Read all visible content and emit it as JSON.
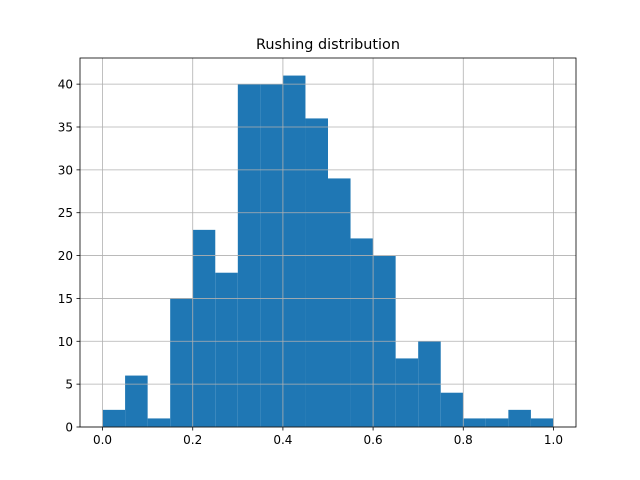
{
  "chart_data": {
    "type": "histogram",
    "title": "Rushing distribution",
    "bins": [
      0,
      0.05,
      0.1,
      0.15,
      0.2,
      0.25,
      0.3,
      0.35,
      0.4,
      0.45,
      0.5,
      0.55,
      0.6,
      0.65,
      0.7,
      0.75,
      0.8,
      0.85,
      0.9,
      0.95,
      1
    ],
    "counts": [
      2,
      6,
      1,
      15,
      23,
      18,
      40,
      40,
      41,
      36,
      29,
      22,
      20,
      8,
      10,
      4,
      1,
      1,
      2,
      1
    ],
    "color": "#1f77b4",
    "xlim": [
      -0.05,
      1.05
    ],
    "xticks": [
      {
        "value": 0,
        "label": "0.0"
      },
      0.2,
      0.4,
      0.6,
      0.8,
      {
        "value": 1,
        "label": "1.0"
      }
    ],
    "ylim": [
      0,
      43.05
    ],
    "yticks": [
      0,
      5,
      10,
      15,
      20,
      25,
      30,
      35,
      40
    ],
    "grid": true
  }
}
